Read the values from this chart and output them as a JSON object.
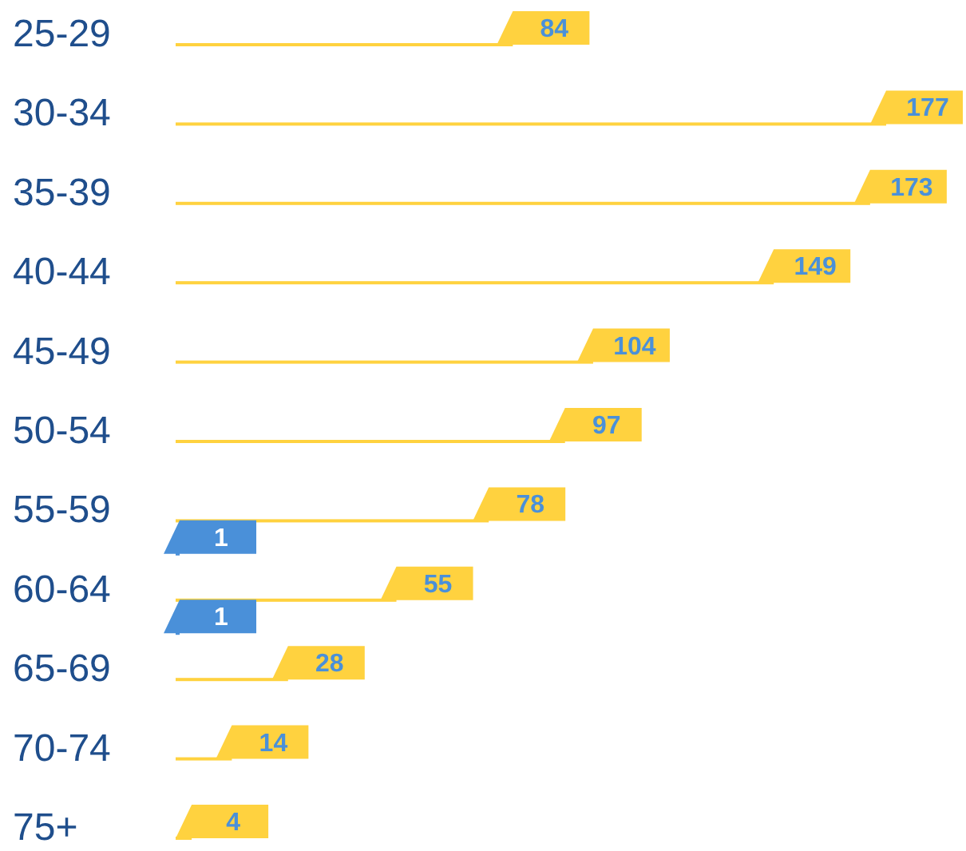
{
  "chart_data": {
    "type": "bar",
    "orientation": "horizontal",
    "data_labels": true,
    "categories": [
      "25-29",
      "30-34",
      "35-39",
      "40-44",
      "45-49",
      "50-54",
      "55-59",
      "60-64",
      "65-69",
      "70-74",
      "75+"
    ],
    "series": [
      {
        "color": "#ffd23f",
        "values": [
          84,
          177,
          173,
          149,
          104,
          97,
          78,
          55,
          28,
          14,
          4
        ]
      },
      {
        "color": "#4a90d9",
        "values": [
          null,
          null,
          null,
          null,
          null,
          null,
          null,
          1,
          1,
          null,
          null
        ]
      }
    ]
  }
}
